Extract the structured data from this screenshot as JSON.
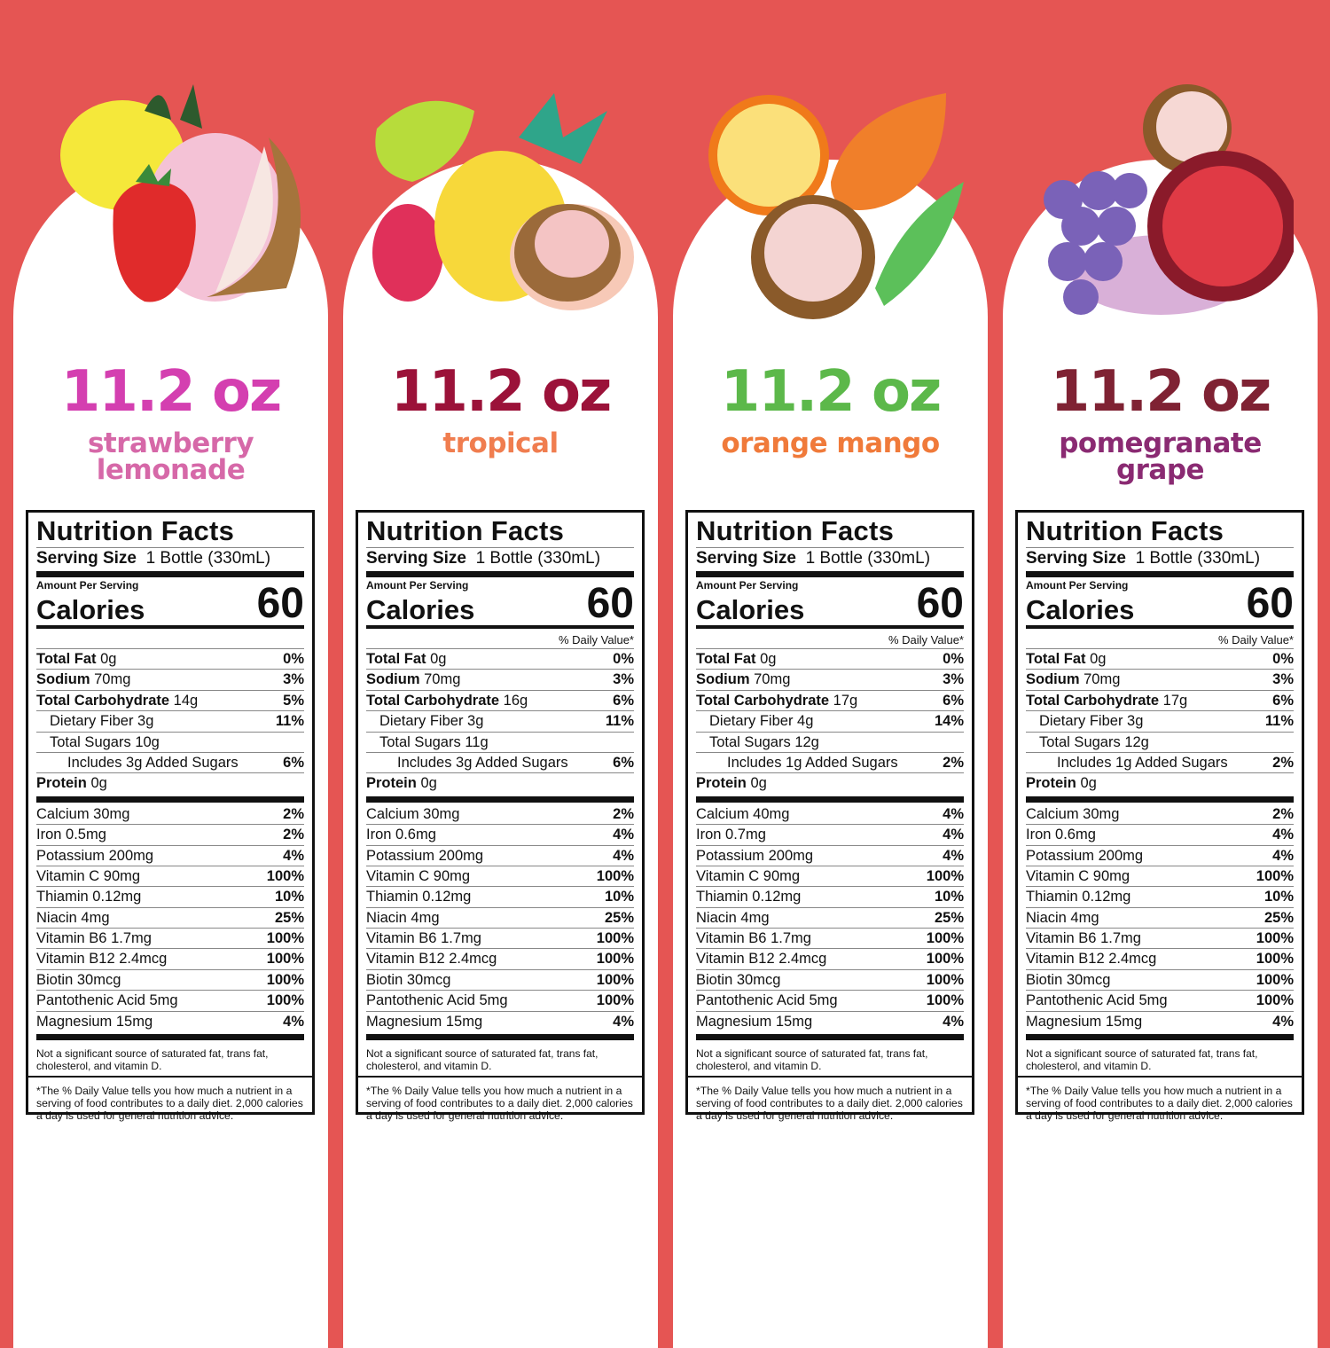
{
  "colors": {
    "background": "#e55553",
    "panel": "#ffffff"
  },
  "products": [
    {
      "size": "11.2 oz",
      "flavor": [
        "strawberry",
        "lemonade"
      ],
      "size_color": "#d43fb0",
      "flavor_color": "#d668a8",
      "fruits": [
        "lemon",
        "strawberry",
        "guava",
        "coconut"
      ],
      "facts": {
        "title": "Nutrition Facts",
        "serving_label": "Serving Size",
        "serving_value": "1 Bottle (330mL)",
        "amount_per_serving": "Amount Per Serving",
        "calories_label": "Calories",
        "calories": "60",
        "dv_header": "",
        "macros": [
          {
            "name": "Total Fat",
            "amount": "0g",
            "dv": "0%",
            "bold": true,
            "indent": 0
          },
          {
            "name": "Sodium",
            "amount": "70mg",
            "dv": "3%",
            "bold": true,
            "indent": 0
          },
          {
            "name": "Total Carbohydrate",
            "amount": "14g",
            "dv": "5%",
            "bold": true,
            "indent": 0
          },
          {
            "name": "Dietary Fiber",
            "amount": "3g",
            "dv": "11%",
            "bold": false,
            "indent": 1
          },
          {
            "name": "Total Sugars",
            "amount": "10g",
            "dv": "",
            "bold": false,
            "indent": 1
          },
          {
            "name": "Includes 3g Added Sugars",
            "amount": "",
            "dv": "6%",
            "bold": false,
            "indent": 2
          },
          {
            "name": "Protein",
            "amount": "0g",
            "dv": "",
            "bold": true,
            "indent": 0
          }
        ],
        "micros": [
          {
            "name": "Calcium 30mg",
            "dv": "2%"
          },
          {
            "name": "Iron 0.5mg",
            "dv": "2%"
          },
          {
            "name": "Potassium 200mg",
            "dv": "4%"
          },
          {
            "name": "Vitamin C 90mg",
            "dv": "100%"
          },
          {
            "name": "Thiamin 0.12mg",
            "dv": "10%"
          },
          {
            "name": "Niacin 4mg",
            "dv": "25%"
          },
          {
            "name": "Vitamin B6 1.7mg",
            "dv": "100%"
          },
          {
            "name": "Vitamin B12 2.4mcg",
            "dv": "100%"
          },
          {
            "name": "Biotin 30mcg",
            "dv": "100%"
          },
          {
            "name": "Pantothenic Acid 5mg",
            "dv": "100%"
          },
          {
            "name": "Magnesium 15mg",
            "dv": "4%"
          }
        ],
        "note": "Not a significant source of saturated fat, trans fat, cholesterol, and vitamin D.",
        "footnote": "*The % Daily Value tells you how much a nutrient in a serving of food contributes to a daily diet. 2,000 calories a day is used for general nutrition advice."
      }
    },
    {
      "size": "11.2 oz",
      "flavor": [
        "tropical"
      ],
      "size_color": "#9b1239",
      "flavor_color": "#f07d4f",
      "fruits": [
        "monstera-leaf",
        "pineapple",
        "dragonfruit",
        "coconut"
      ],
      "facts": {
        "title": "Nutrition Facts",
        "serving_label": "Serving Size",
        "serving_value": "1 Bottle (330mL)",
        "amount_per_serving": "Amount Per Serving",
        "calories_label": "Calories",
        "calories": "60",
        "dv_header": "% Daily Value*",
        "macros": [
          {
            "name": "Total Fat",
            "amount": "0g",
            "dv": "0%",
            "bold": true,
            "indent": 0
          },
          {
            "name": "Sodium",
            "amount": "70mg",
            "dv": "3%",
            "bold": true,
            "indent": 0
          },
          {
            "name": "Total Carbohydrate",
            "amount": "16g",
            "dv": "6%",
            "bold": true,
            "indent": 0
          },
          {
            "name": "Dietary Fiber",
            "amount": "3g",
            "dv": "11%",
            "bold": false,
            "indent": 1
          },
          {
            "name": "Total Sugars",
            "amount": "11g",
            "dv": "",
            "bold": false,
            "indent": 1
          },
          {
            "name": "Includes 3g Added Sugars",
            "amount": "",
            "dv": "6%",
            "bold": false,
            "indent": 2
          },
          {
            "name": "Protein",
            "amount": "0g",
            "dv": "",
            "bold": true,
            "indent": 0
          }
        ],
        "micros": [
          {
            "name": "Calcium 30mg",
            "dv": "2%"
          },
          {
            "name": "Iron 0.6mg",
            "dv": "4%"
          },
          {
            "name": "Potassium 200mg",
            "dv": "4%"
          },
          {
            "name": "Vitamin C 90mg",
            "dv": "100%"
          },
          {
            "name": "Thiamin 0.12mg",
            "dv": "10%"
          },
          {
            "name": "Niacin 4mg",
            "dv": "25%"
          },
          {
            "name": "Vitamin B6 1.7mg",
            "dv": "100%"
          },
          {
            "name": "Vitamin B12 2.4mcg",
            "dv": "100%"
          },
          {
            "name": "Biotin 30mcg",
            "dv": "100%"
          },
          {
            "name": "Pantothenic Acid 5mg",
            "dv": "100%"
          },
          {
            "name": "Magnesium 15mg",
            "dv": "4%"
          }
        ],
        "note": "Not a significant source of saturated fat, trans fat, cholesterol, and vitamin D.",
        "footnote": "*The % Daily Value tells you how much a nutrient in a serving of food contributes to a daily diet. 2,000 calories a day is used for general nutrition advice."
      }
    },
    {
      "size": "11.2 oz",
      "flavor": [
        "orange mango"
      ],
      "size_color": "#5cb84a",
      "flavor_color": "#f07a3a",
      "fruits": [
        "orange",
        "mango",
        "coconut",
        "leaf"
      ],
      "facts": {
        "title": "Nutrition Facts",
        "serving_label": "Serving Size",
        "serving_value": "1 Bottle (330mL)",
        "amount_per_serving": "Amount Per Serving",
        "calories_label": "Calories",
        "calories": "60",
        "dv_header": "% Daily Value*",
        "macros": [
          {
            "name": "Total Fat",
            "amount": "0g",
            "dv": "0%",
            "bold": true,
            "indent": 0
          },
          {
            "name": "Sodium",
            "amount": "70mg",
            "dv": "3%",
            "bold": true,
            "indent": 0
          },
          {
            "name": "Total Carbohydrate",
            "amount": "17g",
            "dv": "6%",
            "bold": true,
            "indent": 0
          },
          {
            "name": "Dietary Fiber",
            "amount": "4g",
            "dv": "14%",
            "bold": false,
            "indent": 1
          },
          {
            "name": "Total Sugars",
            "amount": "12g",
            "dv": "",
            "bold": false,
            "indent": 1
          },
          {
            "name": "Includes 1g Added Sugars",
            "amount": "",
            "dv": "2%",
            "bold": false,
            "indent": 2
          },
          {
            "name": "Protein",
            "amount": "0g",
            "dv": "",
            "bold": true,
            "indent": 0
          }
        ],
        "micros": [
          {
            "name": "Calcium 40mg",
            "dv": "4%"
          },
          {
            "name": "Iron 0.7mg",
            "dv": "4%"
          },
          {
            "name": "Potassium 200mg",
            "dv": "4%"
          },
          {
            "name": "Vitamin C 90mg",
            "dv": "100%"
          },
          {
            "name": "Thiamin 0.12mg",
            "dv": "10%"
          },
          {
            "name": "Niacin 4mg",
            "dv": "25%"
          },
          {
            "name": "Vitamin B6 1.7mg",
            "dv": "100%"
          },
          {
            "name": "Vitamin B12 2.4mcg",
            "dv": "100%"
          },
          {
            "name": "Biotin 30mcg",
            "dv": "100%"
          },
          {
            "name": "Pantothenic Acid 5mg",
            "dv": "100%"
          },
          {
            "name": "Magnesium 15mg",
            "dv": "4%"
          }
        ],
        "note": "Not a significant source of saturated fat, trans fat, cholesterol, and vitamin D.",
        "footnote": "*The % Daily Value tells you how much a nutrient in a serving of food contributes to a daily diet. 2,000 calories a day is used for general nutrition advice."
      }
    },
    {
      "size": "11.2 oz",
      "flavor": [
        "pomegranate",
        "grape"
      ],
      "size_color": "#7f2233",
      "flavor_color": "#8a2a72",
      "fruits": [
        "coconut",
        "grapes",
        "pomegranate"
      ],
      "facts": {
        "title": "Nutrition Facts",
        "serving_label": "Serving Size",
        "serving_value": "1 Bottle (330mL)",
        "amount_per_serving": "Amount Per Serving",
        "calories_label": "Calories",
        "calories": "60",
        "dv_header": "% Daily Value*",
        "macros": [
          {
            "name": "Total Fat",
            "amount": "0g",
            "dv": "0%",
            "bold": true,
            "indent": 0
          },
          {
            "name": "Sodium",
            "amount": "70mg",
            "dv": "3%",
            "bold": true,
            "indent": 0
          },
          {
            "name": "Total Carbohydrate",
            "amount": "17g",
            "dv": "6%",
            "bold": true,
            "indent": 0
          },
          {
            "name": "Dietary Fiber",
            "amount": "3g",
            "dv": "11%",
            "bold": false,
            "indent": 1
          },
          {
            "name": "Total Sugars",
            "amount": "12g",
            "dv": "",
            "bold": false,
            "indent": 1
          },
          {
            "name": "Includes 1g Added Sugars",
            "amount": "",
            "dv": "2%",
            "bold": false,
            "indent": 2
          },
          {
            "name": "Protein",
            "amount": "0g",
            "dv": "",
            "bold": true,
            "indent": 0
          }
        ],
        "micros": [
          {
            "name": "Calcium 30mg",
            "dv": "2%"
          },
          {
            "name": "Iron 0.6mg",
            "dv": "4%"
          },
          {
            "name": "Potassium 200mg",
            "dv": "4%"
          },
          {
            "name": "Vitamin C 90mg",
            "dv": "100%"
          },
          {
            "name": "Thiamin 0.12mg",
            "dv": "10%"
          },
          {
            "name": "Niacin 4mg",
            "dv": "25%"
          },
          {
            "name": "Vitamin B6 1.7mg",
            "dv": "100%"
          },
          {
            "name": "Vitamin B12 2.4mcg",
            "dv": "100%"
          },
          {
            "name": "Biotin 30mcg",
            "dv": "100%"
          },
          {
            "name": "Pantothenic Acid 5mg",
            "dv": "100%"
          },
          {
            "name": "Magnesium 15mg",
            "dv": "4%"
          }
        ],
        "note": "Not a significant source of saturated fat, trans fat, cholesterol, and vitamin D.",
        "footnote": "*The % Daily Value tells you how much a nutrient in a serving of food contributes to a daily diet. 2,000 calories a day is used for general nutrition advice."
      }
    }
  ]
}
